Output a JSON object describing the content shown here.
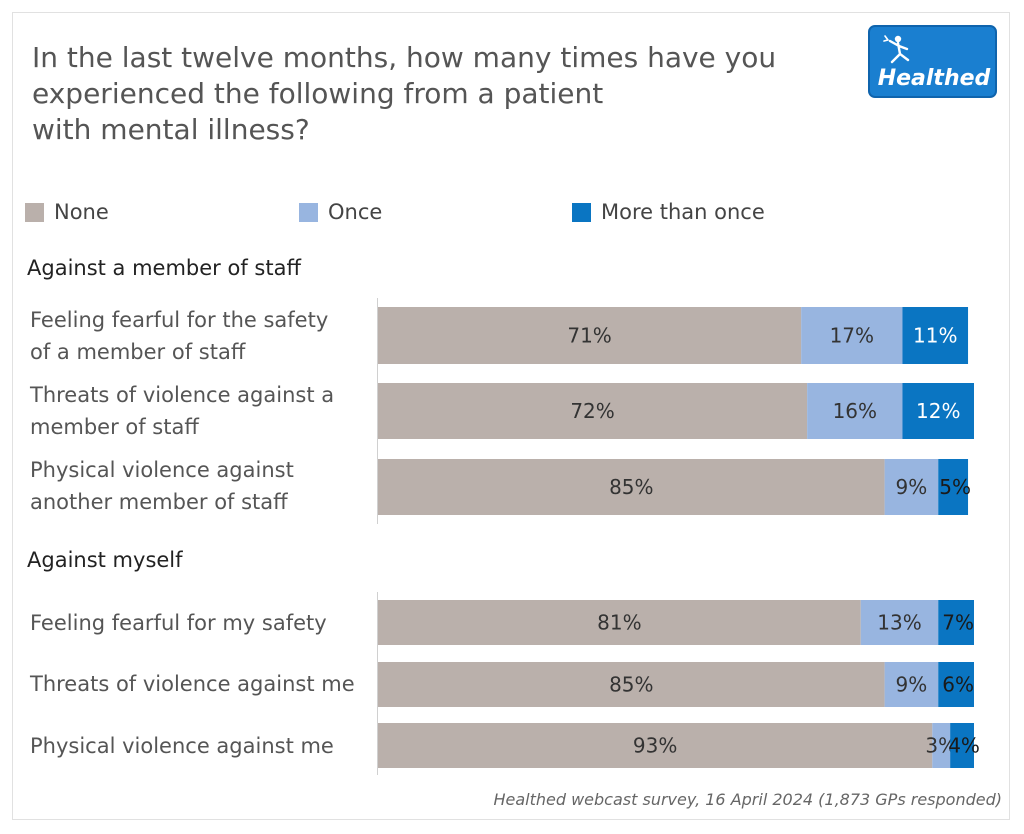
{
  "title_lines": [
    "In the last twelve months, how many times have you",
    "experienced the following from a patient",
    "with mental illness?"
  ],
  "logo": {
    "text": "Healthed",
    "icon": "running-figure-icon",
    "color": "#1a7fd0"
  },
  "legend": [
    {
      "label": "None",
      "color": "#bab0ab"
    },
    {
      "label": "Once",
      "color": "#98b5e0"
    },
    {
      "label": "More than once",
      "color": "#0a75c2"
    }
  ],
  "sections": [
    {
      "heading": "Against a member of staff"
    },
    {
      "heading": "Against myself"
    }
  ],
  "chart_data": {
    "type": "bar",
    "orientation": "horizontal",
    "stacked": true,
    "xlim": [
      0,
      100
    ],
    "series_names": [
      "None",
      "Once",
      "More than once"
    ],
    "series_colors": [
      "#bab0ab",
      "#98b5e0",
      "#0a75c2"
    ],
    "groups": [
      {
        "heading": "Against a member of staff",
        "rows": [
          {
            "label_lines": [
              "Feeling fearful for the safety",
              "of a member of staff"
            ],
            "values": [
              71,
              17,
              11
            ],
            "labels": [
              "71%",
              "17%",
              "11%"
            ]
          },
          {
            "label_lines": [
              "Threats of violence against a",
              "member of staff"
            ],
            "values": [
              72,
              16,
              12
            ],
            "labels": [
              "72%",
              "16%",
              "12%"
            ]
          },
          {
            "label_lines": [
              "Physical violence against",
              "another member of staff"
            ],
            "values": [
              85,
              9,
              5
            ],
            "labels": [
              "85%",
              "9%",
              "5%"
            ]
          }
        ]
      },
      {
        "heading": "Against myself",
        "rows": [
          {
            "label_lines": [
              "Feeling fearful for my safety"
            ],
            "values": [
              81,
              13,
              7
            ],
            "labels": [
              "81%",
              "13%",
              "7%"
            ]
          },
          {
            "label_lines": [
              "Threats of violence against me"
            ],
            "values": [
              85,
              9,
              6
            ],
            "labels": [
              "85%",
              "9%",
              "6%"
            ]
          },
          {
            "label_lines": [
              "Physical violence against me"
            ],
            "values": [
              93,
              3,
              4
            ],
            "labels": [
              "93%",
              "3%",
              "4%"
            ]
          }
        ]
      }
    ]
  },
  "footnote": "Healthed webcast survey, 16 April 2024 (1,873 GPs responded)"
}
